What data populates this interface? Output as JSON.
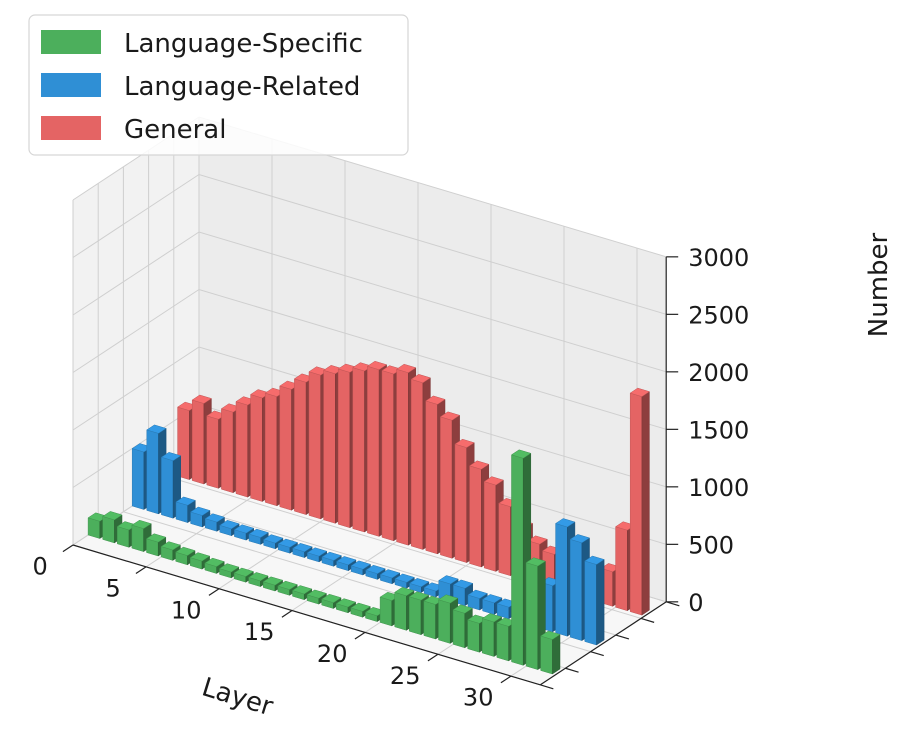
{
  "chart_data": {
    "type": "bar",
    "subtype": "3d-bar",
    "x": [
      0,
      1,
      2,
      3,
      4,
      5,
      6,
      7,
      8,
      9,
      10,
      11,
      12,
      13,
      14,
      15,
      16,
      17,
      18,
      19,
      20,
      21,
      22,
      23,
      24,
      25,
      26,
      27,
      28,
      29,
      30,
      31
    ],
    "xlabel": "Layer",
    "zlabel": "Number",
    "xlim": [
      0,
      32
    ],
    "zlim": [
      0,
      3000
    ],
    "x_ticks": [
      "0",
      "5",
      "10",
      "15",
      "20",
      "25",
      "30"
    ],
    "z_ticks": [
      "0",
      "500",
      "1000",
      "1500",
      "2000",
      "2500",
      "3000"
    ],
    "grid": true,
    "legend_position": "top-left",
    "series": [
      {
        "name": "Language-Specific",
        "color": "#4caf5c",
        "values": [
          150,
          200,
          150,
          200,
          120,
          90,
          80,
          70,
          60,
          50,
          50,
          50,
          50,
          50,
          50,
          50,
          50,
          50,
          50,
          50,
          220,
          300,
          300,
          300,
          350,
          300,
          250,
          300,
          300,
          1800,
          900,
          300
        ]
      },
      {
        "name": "Language-Related",
        "color": "#2f8fd5",
        "values": [
          500,
          700,
          500,
          150,
          100,
          80,
          60,
          60,
          60,
          50,
          50,
          50,
          50,
          50,
          50,
          50,
          50,
          50,
          50,
          50,
          50,
          150,
          150,
          100,
          100,
          100,
          150,
          150,
          400,
          950,
          850,
          700
        ]
      },
      {
        "name": "General",
        "color": "#e46464",
        "values": [
          600,
          700,
          600,
          700,
          800,
          900,
          950,
          1050,
          1150,
          1250,
          1300,
          1350,
          1400,
          1450,
          1450,
          1500,
          1450,
          1300,
          1200,
          1000,
          850,
          750,
          600,
          450,
          350,
          300,
          250,
          200,
          200,
          300,
          700,
          1900
        ]
      }
    ]
  }
}
